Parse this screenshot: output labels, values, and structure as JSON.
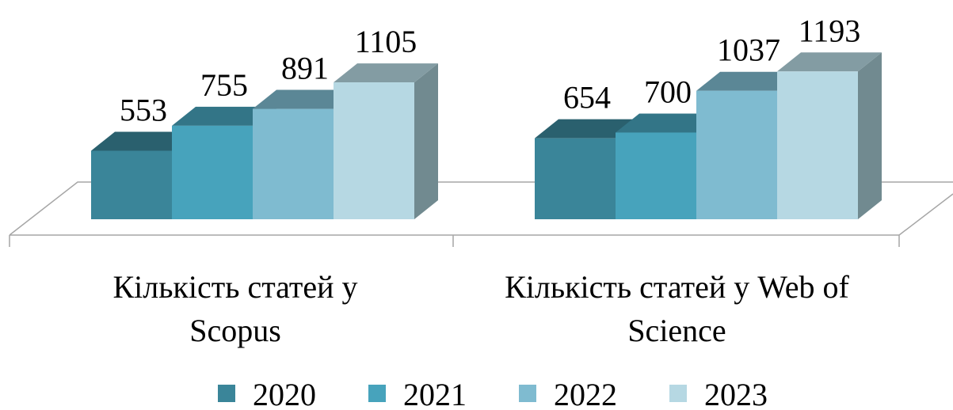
{
  "chart_data": {
    "type": "bar3d",
    "categories": [
      "Кількість статей у Scopus",
      "Кількість статей у Web of Science"
    ],
    "series": [
      {
        "name": "2020",
        "color": "#3a8599",
        "values": [
          553,
          654
        ]
      },
      {
        "name": "2021",
        "color": "#47a3bc",
        "values": [
          755,
          700
        ]
      },
      {
        "name": "2022",
        "color": "#7fbbd0",
        "values": [
          891,
          1037
        ]
      },
      {
        "name": "2023",
        "color": "#b6d8e3",
        "values": [
          1105,
          1193
        ]
      }
    ],
    "legend": "bottom"
  }
}
